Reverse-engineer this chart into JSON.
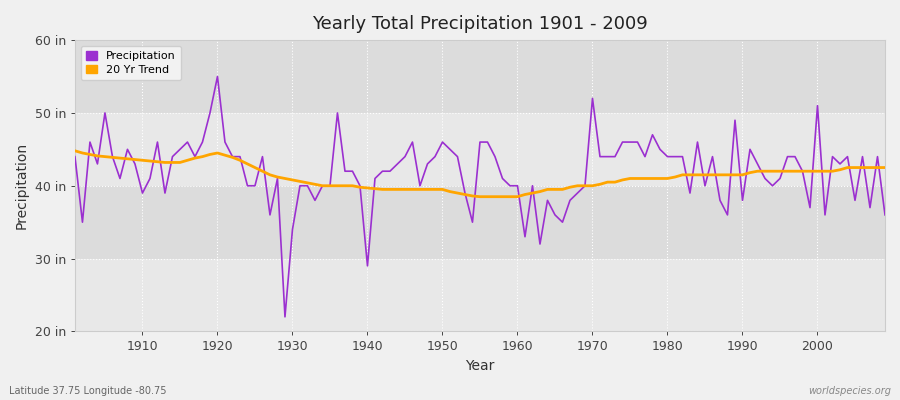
{
  "title": "Yearly Total Precipitation 1901 - 2009",
  "xlabel": "Year",
  "ylabel": "Precipitation",
  "xlim": [
    1901,
    2009
  ],
  "ylim": [
    20,
    60
  ],
  "yticks": [
    20,
    30,
    40,
    50,
    60
  ],
  "ytick_labels": [
    "20 in",
    "30 in",
    "40 in",
    "50 in",
    "60 in"
  ],
  "xticks": [
    1910,
    1920,
    1930,
    1940,
    1950,
    1960,
    1970,
    1980,
    1990,
    2000
  ],
  "precipitation_color": "#9b30d0",
  "trend_color": "#ffa500",
  "fig_bg_color": "#f0f0f0",
  "plot_bg_color": "#e8e8e8",
  "band_color_light": "#e8e8e8",
  "band_color_dark": "#dcdcdc",
  "grid_color": "#ffffff",
  "years": [
    1901,
    1902,
    1903,
    1904,
    1905,
    1906,
    1907,
    1908,
    1909,
    1910,
    1911,
    1912,
    1913,
    1914,
    1915,
    1916,
    1917,
    1918,
    1919,
    1920,
    1921,
    1922,
    1923,
    1924,
    1925,
    1926,
    1927,
    1928,
    1929,
    1930,
    1931,
    1932,
    1933,
    1934,
    1935,
    1936,
    1937,
    1938,
    1939,
    1940,
    1941,
    1942,
    1943,
    1944,
    1945,
    1946,
    1947,
    1948,
    1949,
    1950,
    1951,
    1952,
    1953,
    1954,
    1955,
    1956,
    1957,
    1958,
    1959,
    1960,
    1961,
    1962,
    1963,
    1964,
    1965,
    1966,
    1967,
    1968,
    1969,
    1970,
    1971,
    1972,
    1973,
    1974,
    1975,
    1976,
    1977,
    1978,
    1979,
    1980,
    1981,
    1982,
    1983,
    1984,
    1985,
    1986,
    1987,
    1988,
    1989,
    1990,
    1991,
    1992,
    1993,
    1994,
    1995,
    1996,
    1997,
    1998,
    1999,
    2000,
    2001,
    2002,
    2003,
    2004,
    2005,
    2006,
    2007,
    2008,
    2009
  ],
  "precip": [
    44,
    35,
    46,
    43,
    50,
    44,
    41,
    45,
    43,
    39,
    41,
    46,
    39,
    44,
    45,
    46,
    44,
    46,
    50,
    55,
    46,
    44,
    44,
    40,
    40,
    44,
    36,
    41,
    22,
    34,
    40,
    40,
    38,
    40,
    40,
    50,
    42,
    42,
    40,
    29,
    41,
    42,
    42,
    43,
    44,
    46,
    40,
    43,
    44,
    46,
    45,
    44,
    39,
    35,
    46,
    46,
    44,
    41,
    40,
    40,
    33,
    40,
    32,
    38,
    36,
    35,
    38,
    39,
    40,
    52,
    44,
    44,
    44,
    46,
    46,
    46,
    44,
    47,
    45,
    44,
    44,
    44,
    39,
    46,
    40,
    44,
    38,
    36,
    49,
    38,
    45,
    43,
    41,
    40,
    41,
    44,
    44,
    42,
    37,
    51,
    36,
    44,
    43,
    44,
    38,
    44,
    37,
    44,
    36
  ],
  "trend": [
    44.8,
    44.5,
    44.3,
    44.1,
    44.0,
    43.9,
    43.8,
    43.7,
    43.6,
    43.5,
    43.4,
    43.3,
    43.2,
    43.2,
    43.2,
    43.5,
    43.8,
    44.0,
    44.3,
    44.5,
    44.2,
    43.9,
    43.5,
    43.0,
    42.5,
    42.0,
    41.5,
    41.2,
    41.0,
    40.8,
    40.6,
    40.4,
    40.2,
    40.0,
    40.0,
    40.0,
    40.0,
    40.0,
    39.8,
    39.7,
    39.6,
    39.5,
    39.5,
    39.5,
    39.5,
    39.5,
    39.5,
    39.5,
    39.5,
    39.5,
    39.2,
    39.0,
    38.8,
    38.6,
    38.5,
    38.5,
    38.5,
    38.5,
    38.5,
    38.5,
    38.8,
    39.0,
    39.2,
    39.5,
    39.5,
    39.5,
    39.8,
    40.0,
    40.0,
    40.0,
    40.2,
    40.5,
    40.5,
    40.8,
    41.0,
    41.0,
    41.0,
    41.0,
    41.0,
    41.0,
    41.2,
    41.5,
    41.5,
    41.5,
    41.5,
    41.5,
    41.5,
    41.5,
    41.5,
    41.5,
    41.8,
    42.0,
    42.0,
    42.0,
    42.0,
    42.0,
    42.0,
    42.0,
    42.0,
    42.0,
    42.0,
    42.0,
    42.2,
    42.5,
    42.5,
    42.5,
    42.5,
    42.5,
    42.5
  ],
  "footnote_left": "Latitude 37.75 Longitude -80.75",
  "footnote_right": "worldspecies.org",
  "legend_precip": "Precipitation",
  "legend_trend": "20 Yr Trend"
}
